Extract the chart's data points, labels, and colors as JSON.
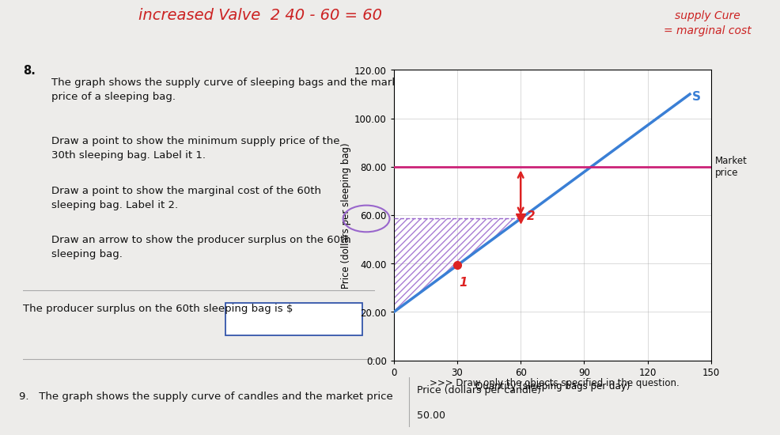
{
  "handwriting_top": "increased Valve  2 40 - 60 = 60",
  "handwriting_top_color": "#cc2222",
  "note_top_right": "supply Cure\n= marginal cost",
  "note_top_right_color": "#cc2222",
  "question_number": "8.",
  "question_text_lines": [
    "The graph shows the supply curve of sleeping bags and the market",
    "price of a sleeping bag.",
    "Draw a point to show the minimum supply price of the",
    "30th sleeping bag. Label it 1.",
    "Draw a point to show the marginal cost of the 60th",
    "sleeping bag. Label it 2.",
    "Draw an arrow to show the producer surplus on the 60th",
    "sleeping bag."
  ],
  "answer_text": "The producer surplus on the 60th sleeping bag is $",
  "question9_text": "9.   The graph shows the supply curve of candles and the market price",
  "price_label_bottom": "Price (dollars per candle)",
  "price_label_bottom_value": "50.00",
  "supply_curve_start_x": 0,
  "supply_curve_start_y": 20,
  "supply_curve_end_x": 140,
  "supply_curve_end_y": 110,
  "supply_label": "S",
  "market_price_y": 80,
  "market_price_label": "Market\nprice",
  "point1_x": 30,
  "point1_label": "1",
  "point2_label": "2",
  "xlabel": "Quantity (sleeping bags per day)",
  "ylabel": "Price (dollars per sleeping bag)",
  "xlim": [
    0,
    150
  ],
  "ylim": [
    0,
    120
  ],
  "xticks": [
    0,
    30,
    60,
    90,
    120,
    150
  ],
  "yticks": [
    0.0,
    20.0,
    40.0,
    60.0,
    80.0,
    100.0,
    120.0
  ],
  "supply_color": "#3a7fd5",
  "market_price_color": "#cc2277",
  "point_color": "#dd2222",
  "arrow_color": "#dd2222",
  "hatch_color": "#9966cc",
  "circle_60_color": "#9966cc",
  "note_text": ">>> Draw only the objects specified in the question.",
  "bg_color": "#edecea",
  "bg_color_bottom": "#e8e6e3"
}
